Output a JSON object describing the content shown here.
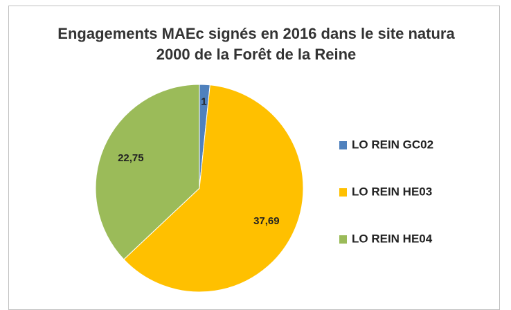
{
  "chart_data": {
    "type": "pie",
    "title": "Engagements MAEc signés en 2016 dans le site natura 2000 de la Forêt de la Reine",
    "categories": [
      "LO REIN GC02",
      "LO REIN HE03",
      "LO REIN HE04"
    ],
    "values": [
      1,
      37.69,
      22.75
    ],
    "value_labels": [
      "1",
      "37,69",
      "22,75"
    ],
    "colors": [
      "#4f81bd",
      "#ffc000",
      "#9bbb59"
    ],
    "legend": "right"
  }
}
